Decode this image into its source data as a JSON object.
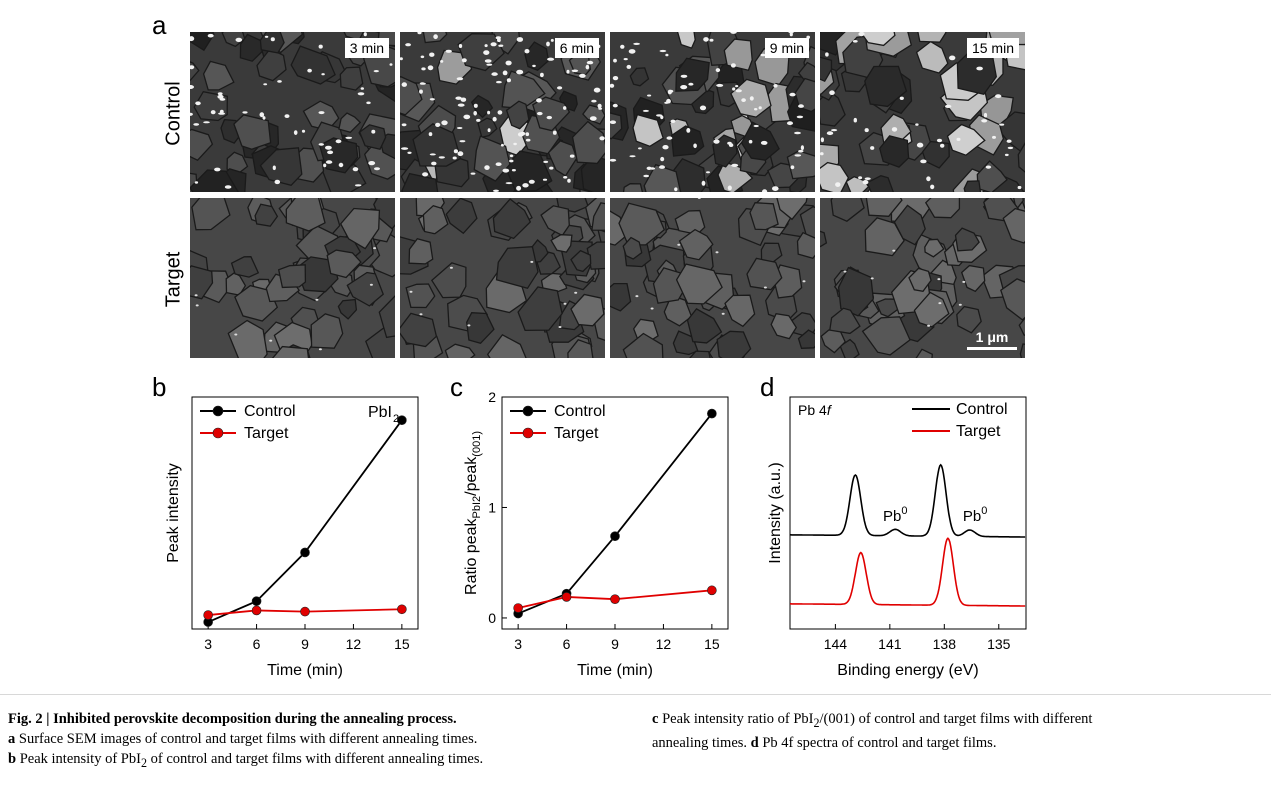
{
  "panel_a": {
    "letter": "a",
    "rows": [
      {
        "label": "Control",
        "tone": "control"
      },
      {
        "label": "Target",
        "tone": "target"
      }
    ],
    "times": [
      "3 min",
      "6 min",
      "9 min",
      "15 min"
    ],
    "scalebar": "1 μm"
  },
  "chart_data": [
    {
      "panel": "b",
      "type": "line",
      "x": [
        3,
        6,
        9,
        15
      ],
      "xticks": [
        "3",
        "6",
        "9",
        "12",
        "15"
      ],
      "xlim": [
        2,
        16
      ],
      "ylim": [
        0,
        1.0
      ],
      "xlabel": "Time (min)",
      "ylabel": "Peak intensity",
      "annotation": "PbI",
      "annotation_sub": "2",
      "legend": [
        "Control",
        "Target"
      ],
      "series": [
        {
          "name": "Control",
          "color": "#000000",
          "values": [
            0.03,
            0.12,
            0.33,
            0.9
          ]
        },
        {
          "name": "Target",
          "color": "#e00000",
          "values": [
            0.06,
            0.08,
            0.075,
            0.085
          ]
        }
      ]
    },
    {
      "panel": "c",
      "type": "line",
      "x": [
        3,
        6,
        9,
        15
      ],
      "xticks": [
        "3",
        "6",
        "9",
        "12",
        "15"
      ],
      "xlim": [
        2,
        16
      ],
      "ylim": [
        -0.1,
        2.0
      ],
      "yticks": [
        "0",
        "1",
        "2"
      ],
      "xlabel": "Time (min)",
      "ylabel_main": "Ratio peak",
      "ylabel_sub1": "PbI2",
      "ylabel_mid": "/peak",
      "ylabel_sub2": "(001)",
      "legend": [
        "Control",
        "Target"
      ],
      "series": [
        {
          "name": "Control",
          "color": "#000000",
          "values": [
            0.04,
            0.22,
            0.74,
            1.85
          ]
        },
        {
          "name": "Target",
          "color": "#e00000",
          "values": [
            0.09,
            0.19,
            0.17,
            0.25
          ]
        }
      ]
    },
    {
      "panel": "d",
      "type": "line",
      "xlim": [
        146.5,
        133.5
      ],
      "xticks": [
        "144",
        "141",
        "138",
        "135"
      ],
      "xlabel": "Binding energy (eV)",
      "ylabel": "Intensity (a.u.)",
      "inset": "Pb 4",
      "inset_italic": "f",
      "peak_label": "Pb",
      "peak_sup": "0",
      "legend": [
        "Control",
        "Target"
      ],
      "series": [
        {
          "name": "Control",
          "color": "#000000",
          "peaks": [
            [
              142.9,
              0.56
            ],
            [
              140.7,
              0.06
            ],
            [
              138.2,
              0.66
            ],
            [
              136.6,
              0.06
            ]
          ],
          "offset": 1.0
        },
        {
          "name": "Target",
          "color": "#e00000",
          "peaks": [
            [
              142.6,
              0.48
            ],
            [
              137.8,
              0.62
            ]
          ],
          "offset": 0.0
        }
      ]
    }
  ],
  "caption": {
    "fig": "Fig. 2 | Inhibited perovskite decomposition during the annealing process.",
    "a_letter": "a",
    "a_text": " Surface SEM images of control and target films with different annealing times.",
    "b_letter": "b",
    "b_text_1": " Peak intensity of PbI",
    "b_sub": "2",
    "b_text_2": " of control and target films with different annealing times.",
    "c_letter": "c",
    "c_text_1": " Peak intensity ratio of PbI",
    "c_sub": "2",
    "c_text_2": "/(001) of control and target films with different",
    "c_text_3": "annealing times. ",
    "d_letter": "d",
    "d_text": " Pb 4f spectra of control and target films."
  }
}
